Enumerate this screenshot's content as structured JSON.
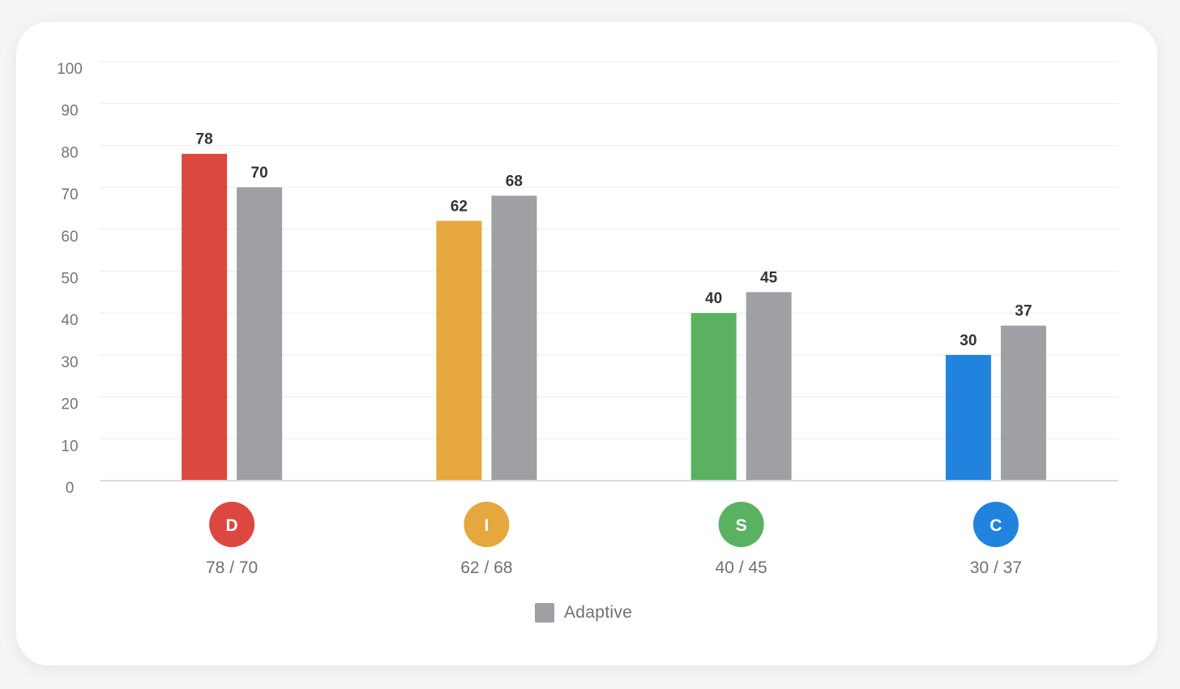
{
  "chart_data": {
    "type": "bar",
    "categories": [
      "D",
      "I",
      "S",
      "C"
    ],
    "series": [
      {
        "key": "natural",
        "values": [
          78,
          62,
          40,
          30
        ],
        "colors": [
          "#dc4840",
          "#e6a73f",
          "#5bb162",
          "#2183dd"
        ]
      },
      {
        "key": "adaptive",
        "name": "Adaptive",
        "values": [
          70,
          68,
          45,
          37
        ],
        "color": "#9ea0a4"
      }
    ],
    "category_labels": [
      "78 / 70",
      "62 / 68",
      "40 / 45",
      "30 / 37"
    ],
    "ylim": [
      0,
      100
    ],
    "yticks": [
      0,
      10,
      20,
      30,
      40,
      50,
      60,
      70,
      80,
      90,
      100
    ],
    "grid": true,
    "legend_position": "bottom-center"
  },
  "legend": {
    "items": [
      {
        "label": "Adaptive",
        "color": "#9ea0a4"
      }
    ]
  }
}
